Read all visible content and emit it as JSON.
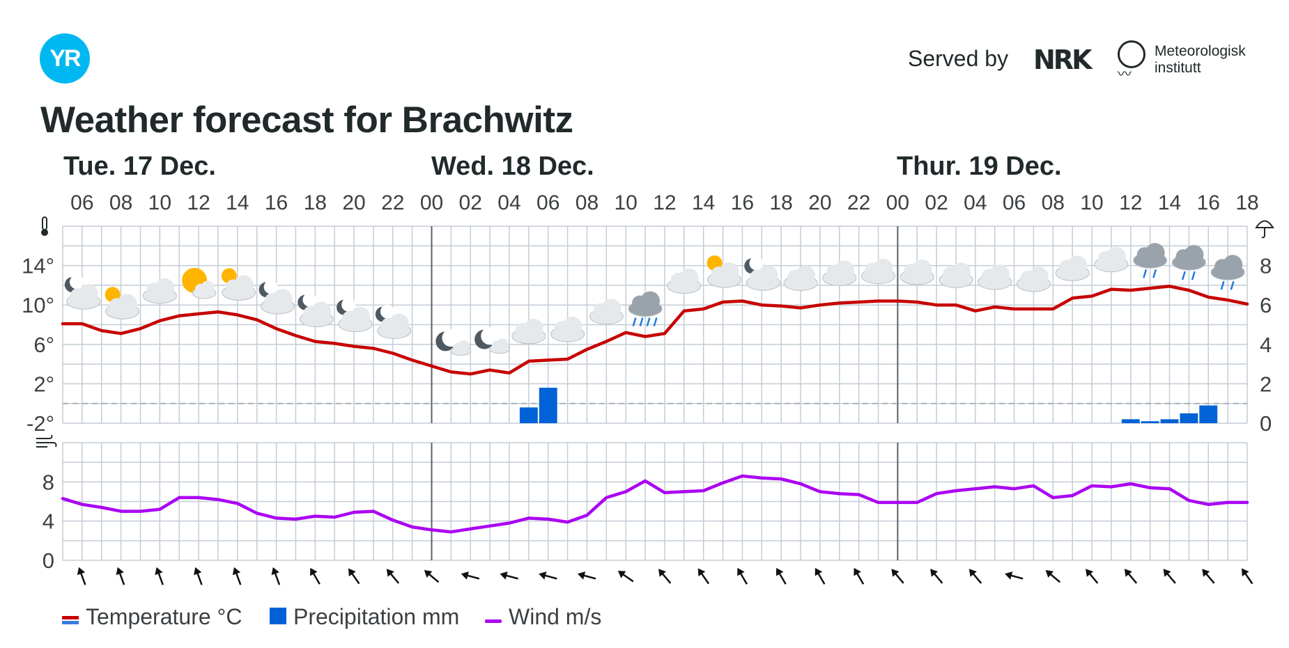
{
  "header": {
    "logo_text": "YR",
    "served_by": "Served by",
    "nrk": "NRK",
    "met_line1": "Meteorologisk",
    "met_line2": "institutt",
    "title": "Weather forecast for Brachwitz"
  },
  "days": [
    "Tue. 17 Dec.",
    "Wed. 18 Dec.",
    "Thur. 19 Dec."
  ],
  "legend": {
    "temperature": "Temperature °C",
    "precipitation": "Precipitation mm",
    "wind": "Wind m/s"
  },
  "colors": {
    "temperature": "#c60000",
    "precipitation": "#0062d6",
    "wind": "#aa00f2",
    "grid": "#c3ccd5",
    "logo": "#00b8f1"
  },
  "chart_data": [
    {
      "type": "line",
      "title": "",
      "x_start_hour": 5,
      "x_end_hour": 66,
      "hour_tick_labels": [
        "06",
        "08",
        "10",
        "12",
        "14",
        "16",
        "18",
        "20",
        "22",
        "00",
        "02",
        "04",
        "06",
        "08",
        "10",
        "12",
        "14",
        "16",
        "18",
        "20",
        "22",
        "00",
        "02",
        "04",
        "06",
        "08",
        "10",
        "12",
        "14",
        "16",
        "18"
      ],
      "y_tick_labels": [
        "14°",
        "10°",
        "6°",
        "2°",
        "-2°"
      ],
      "y_ticks": [
        14,
        10,
        6,
        2,
        -2
      ],
      "ylim": [
        -2,
        18
      ],
      "series": [
        {
          "name": "Temperature °C",
          "x": [
            5,
            6,
            7,
            8,
            9,
            10,
            11,
            12,
            13,
            14,
            15,
            16,
            17,
            18,
            19,
            20,
            21,
            22,
            23,
            24,
            25,
            26,
            27,
            28,
            29,
            30,
            31,
            32,
            33,
            34,
            35,
            36,
            37,
            38,
            39,
            40,
            41,
            42,
            43,
            44,
            45,
            46,
            47,
            48,
            49,
            50,
            51,
            52,
            53,
            54,
            55,
            56,
            57,
            58,
            59,
            60,
            61,
            62,
            63,
            64,
            65,
            66
          ],
          "values": [
            8.1,
            8.1,
            7.4,
            7.1,
            7.6,
            8.4,
            8.9,
            9.1,
            9.3,
            9.0,
            8.5,
            7.6,
            6.9,
            6.3,
            6.1,
            5.8,
            5.6,
            5.1,
            4.4,
            3.8,
            3.2,
            3.0,
            3.4,
            3.1,
            4.3,
            4.4,
            4.5,
            5.5,
            6.3,
            7.2,
            6.8,
            7.1,
            9.4,
            9.6,
            10.3,
            10.4,
            10.0,
            9.9,
            9.7,
            10.0,
            10.2,
            10.3,
            10.4,
            10.4,
            10.3,
            10.0,
            10.0,
            9.4,
            9.8,
            9.6,
            9.6,
            9.6,
            10.7,
            10.9,
            11.6,
            11.5,
            11.7,
            11.9,
            11.5,
            10.8,
            10.5,
            10.1
          ]
        },
        {
          "name": "Precipitation mm",
          "axis": "right",
          "right_tick_labels": [
            "8",
            "6",
            "4",
            "2",
            "0"
          ],
          "right_ylim": [
            0,
            10
          ],
          "bars": [
            {
              "hour": 29,
              "value": 0.8
            },
            {
              "hour": 30,
              "value": 1.8
            },
            {
              "hour": 60,
              "value": 0.2
            },
            {
              "hour": 61,
              "value": 0.1
            },
            {
              "hour": 62,
              "value": 0.2
            },
            {
              "hour": 63,
              "value": 0.5
            },
            {
              "hour": 64,
              "value": 0.9
            }
          ]
        }
      ],
      "weather_icons": [
        {
          "hour": 6,
          "icon": "partly-cloudy-night-icon"
        },
        {
          "hour": 8,
          "icon": "partly-cloudy-day-icon"
        },
        {
          "hour": 10,
          "icon": "cloudy-icon"
        },
        {
          "hour": 12,
          "icon": "fair-day-icon"
        },
        {
          "hour": 14,
          "icon": "partly-cloudy-day-icon"
        },
        {
          "hour": 16,
          "icon": "partly-cloudy-night-icon"
        },
        {
          "hour": 18,
          "icon": "partly-cloudy-night-icon"
        },
        {
          "hour": 20,
          "icon": "partly-cloudy-night-icon"
        },
        {
          "hour": 22,
          "icon": "partly-cloudy-night-icon"
        },
        {
          "hour": 25,
          "icon": "fair-night-icon"
        },
        {
          "hour": 27,
          "icon": "fair-night-icon"
        },
        {
          "hour": 29,
          "icon": "cloudy-icon"
        },
        {
          "hour": 31,
          "icon": "cloudy-icon"
        },
        {
          "hour": 33,
          "icon": "cloudy-icon"
        },
        {
          "hour": 35,
          "icon": "rain-icon"
        },
        {
          "hour": 37,
          "icon": "cloudy-icon"
        },
        {
          "hour": 39,
          "icon": "partly-cloudy-day-icon"
        },
        {
          "hour": 41,
          "icon": "partly-cloudy-night-icon"
        },
        {
          "hour": 43,
          "icon": "cloudy-icon"
        },
        {
          "hour": 45,
          "icon": "cloudy-icon"
        },
        {
          "hour": 47,
          "icon": "cloudy-icon"
        },
        {
          "hour": 49,
          "icon": "cloudy-icon"
        },
        {
          "hour": 51,
          "icon": "cloudy-icon"
        },
        {
          "hour": 53,
          "icon": "cloudy-icon"
        },
        {
          "hour": 55,
          "icon": "cloudy-icon"
        },
        {
          "hour": 57,
          "icon": "cloudy-icon"
        },
        {
          "hour": 59,
          "icon": "cloudy-icon"
        },
        {
          "hour": 61,
          "icon": "light-rain-icon"
        },
        {
          "hour": 63,
          "icon": "light-rain-icon"
        },
        {
          "hour": 65,
          "icon": "light-rain-icon"
        }
      ]
    },
    {
      "type": "line",
      "title": "",
      "y_tick_labels": [
        "8",
        "4",
        "0"
      ],
      "y_ticks": [
        8,
        4,
        0
      ],
      "ylim": [
        0,
        12
      ],
      "series": [
        {
          "name": "Wind m/s",
          "x": [
            5,
            6,
            7,
            8,
            9,
            10,
            11,
            12,
            13,
            14,
            15,
            16,
            17,
            18,
            19,
            20,
            21,
            22,
            23,
            24,
            25,
            26,
            27,
            28,
            29,
            30,
            31,
            32,
            33,
            34,
            35,
            36,
            37,
            38,
            39,
            40,
            41,
            42,
            43,
            44,
            45,
            46,
            47,
            48,
            49,
            50,
            51,
            52,
            53,
            54,
            55,
            56,
            57,
            58,
            59,
            60,
            61,
            62,
            63,
            64,
            65,
            66
          ],
          "values": [
            6.3,
            5.7,
            5.4,
            5.0,
            5.0,
            5.2,
            6.4,
            6.4,
            6.2,
            5.8,
            4.8,
            4.3,
            4.2,
            4.5,
            4.4,
            4.9,
            5.0,
            4.1,
            3.4,
            3.1,
            2.9,
            3.2,
            3.5,
            3.8,
            4.3,
            4.2,
            3.9,
            4.6,
            6.4,
            7.0,
            8.1,
            6.9,
            7.0,
            7.1,
            7.9,
            8.6,
            8.4,
            8.3,
            7.8,
            7.0,
            6.8,
            6.7,
            5.9,
            5.9,
            5.9,
            6.8,
            7.1,
            7.3,
            7.5,
            7.3,
            7.6,
            6.4,
            6.6,
            7.6,
            7.5,
            7.8,
            7.4,
            7.3,
            6.1,
            5.7,
            5.9,
            5.9
          ]
        }
      ],
      "wind_directions_deg": [
        70,
        70,
        70,
        70,
        70,
        70,
        60,
        55,
        50,
        40,
        15,
        15,
        15,
        15,
        35,
        50,
        55,
        60,
        60,
        60,
        60,
        50,
        50,
        50,
        15,
        40,
        50,
        50,
        50,
        50,
        55
      ]
    }
  ]
}
